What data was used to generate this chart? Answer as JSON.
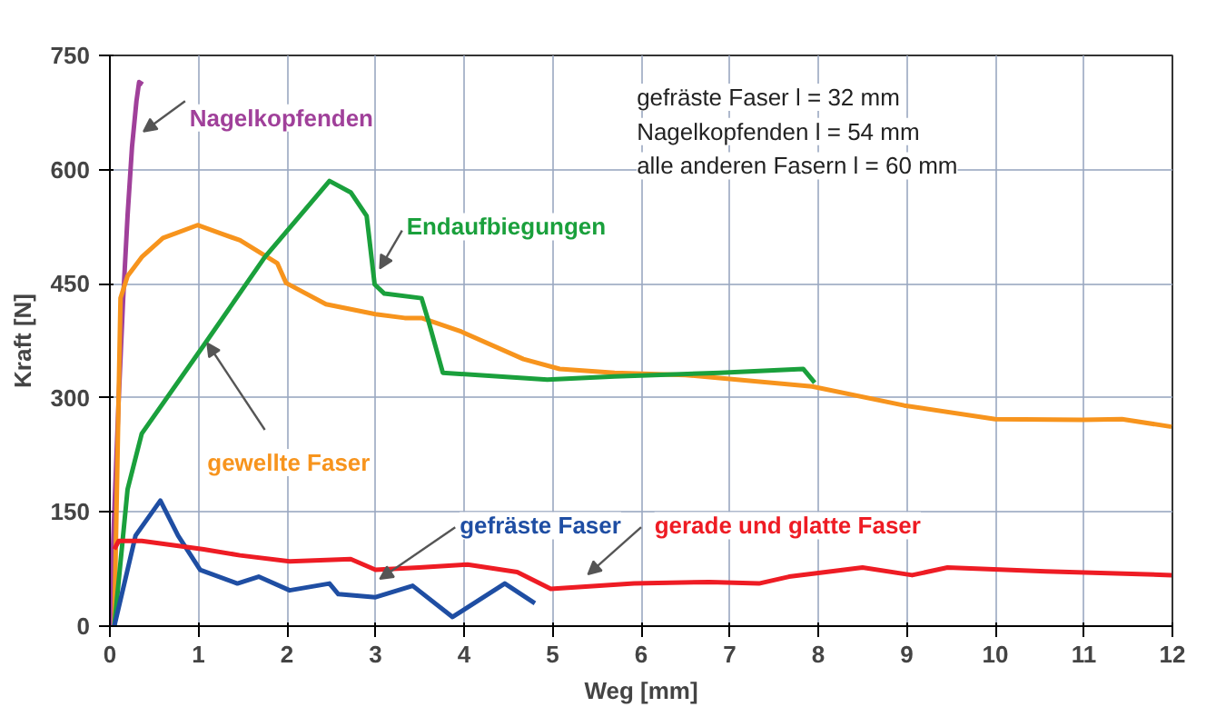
{
  "chart_data": {
    "type": "line",
    "xlabel": "Weg [mm]",
    "ylabel": "Kraft [N]",
    "xlim": [
      0,
      12
    ],
    "ylim": [
      0,
      750
    ],
    "xticks": [
      0,
      1,
      2,
      3,
      4,
      5,
      6,
      7,
      8,
      9,
      10,
      11,
      12
    ],
    "yticks": [
      0,
      150,
      300,
      450,
      600,
      750
    ],
    "grid": true,
    "annotations": [
      "gefräste Faser  l = 32 mm",
      "Nagelkopfenden  l = 54 mm",
      "alle anderen Fasern l = 60 mm"
    ],
    "series": [
      {
        "name": "Nagelkopfenden",
        "color": "#a0409a",
        "x": [
          0,
          0.05,
          0.1,
          0.15,
          0.2,
          0.25,
          0.3,
          0.33,
          0.37
        ],
        "values": [
          0,
          150,
          300,
          430,
          540,
          630,
          690,
          715,
          712
        ]
      },
      {
        "name": "gewellte Faser",
        "color": "#f7941d",
        "x": [
          0.05,
          0.12,
          0.2,
          0.36,
          0.6,
          0.99,
          1.47,
          1.89,
          1.99,
          2.44,
          3.0,
          3.33,
          3.52,
          3.97,
          4.67,
          5.08,
          5.7,
          6.5,
          7.93,
          8.97,
          10.0,
          10.98,
          11.43,
          11.99
        ],
        "values": [
          0,
          431,
          460,
          485,
          510,
          527,
          507,
          477,
          451,
          423,
          410,
          405,
          405,
          387,
          351,
          338,
          333,
          330,
          315,
          290,
          272,
          271,
          272,
          262
        ]
      },
      {
        "name": "Endaufbiegungen",
        "color": "#1aa03c",
        "x": [
          0.05,
          0.2,
          0.36,
          1.06,
          1.75,
          2.48,
          2.72,
          2.9,
          2.99,
          3.1,
          3.52,
          3.6,
          3.76,
          4.94,
          5.7,
          6.89,
          7.83,
          7.96
        ],
        "values": [
          0,
          180,
          253,
          369,
          485,
          585,
          570,
          539,
          449,
          437,
          431,
          400,
          333,
          324,
          328,
          333,
          338,
          320
        ]
      },
      {
        "name": "gefräste Faser",
        "color": "#1f4ea3",
        "x": [
          0.05,
          0.29,
          0.57,
          0.77,
          1.02,
          1.44,
          1.68,
          2.03,
          2.48,
          2.58,
          3.0,
          3.42,
          3.87,
          4.46,
          4.8
        ],
        "values": [
          0,
          119,
          165,
          119,
          74,
          56,
          65,
          47,
          56,
          42,
          38,
          53,
          12,
          56,
          30
        ]
      },
      {
        "name": "gerade und glatte Faser",
        "color": "#ee1c24",
        "x": [
          0.05,
          0.1,
          0.36,
          1.06,
          1.47,
          2.03,
          2.72,
          3.0,
          3.49,
          4.04,
          4.6,
          4.98,
          5.92,
          6.77,
          7.33,
          7.67,
          8.5,
          9.06,
          9.46,
          10.57,
          11.99
        ],
        "values": [
          101,
          112,
          112,
          101,
          93,
          85,
          88,
          74,
          77,
          81,
          71,
          49,
          56,
          58,
          56,
          65,
          77,
          67,
          77,
          72,
          67
        ]
      }
    ]
  }
}
